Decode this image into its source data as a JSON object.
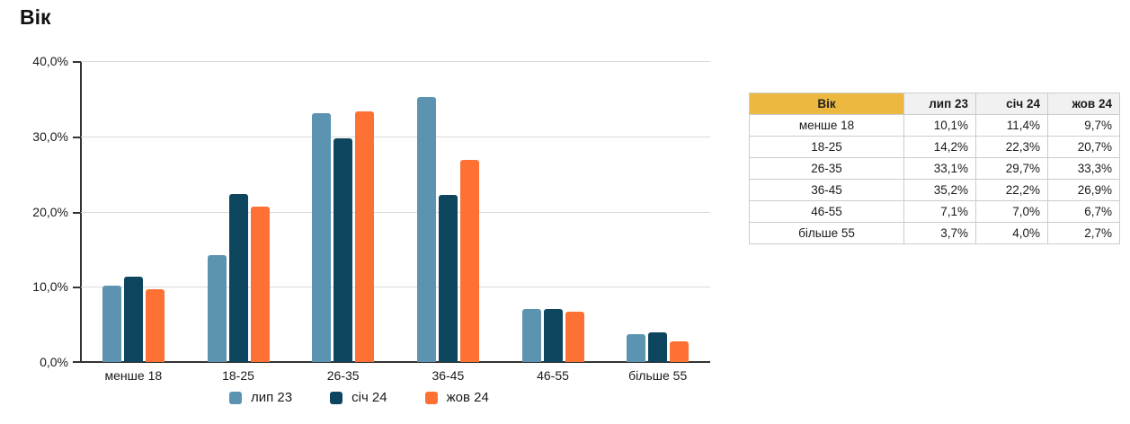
{
  "title": "Вік",
  "colors": {
    "series1": "#5B93B1",
    "series2": "#0D455F",
    "series3": "#FD7134",
    "table_header_bg": "#ECB83F",
    "table_subheader_bg": "#F1F1F1",
    "gridline": "#D9D9D9",
    "axis": "#333333"
  },
  "chart_data": {
    "type": "bar",
    "title": "Вік",
    "categories": [
      "менше 18",
      "18-25",
      "26-35",
      "36-45",
      "46-55",
      "більше 55"
    ],
    "series": [
      {
        "name": "лип 23",
        "color": "#5B93B1",
        "values": [
          10.1,
          14.2,
          33.1,
          35.2,
          7.1,
          3.7
        ]
      },
      {
        "name": "січ 24",
        "color": "#0D455F",
        "values": [
          11.4,
          22.3,
          29.7,
          22.2,
          7.0,
          4.0
        ]
      },
      {
        "name": "жов 24",
        "color": "#FD7134",
        "values": [
          9.7,
          20.7,
          33.3,
          26.9,
          6.7,
          2.7
        ]
      }
    ],
    "xlabel": "",
    "ylabel": "",
    "ylim": [
      0,
      40
    ],
    "yticks": [
      {
        "value": 40,
        "label": "40,0%"
      },
      {
        "value": 30,
        "label": "30,0%"
      },
      {
        "value": 20,
        "label": "20,0%"
      },
      {
        "value": 10,
        "label": "10,0%"
      },
      {
        "value": 0,
        "label": "0,0%"
      }
    ],
    "grid": true,
    "legend_position": "bottom"
  },
  "table": {
    "headers": [
      "Вік",
      "лип 23",
      "січ 24",
      "жов 24"
    ],
    "rows": [
      {
        "age": "менше 18",
        "values": [
          "10,1%",
          "11,4%",
          "9,7%"
        ]
      },
      {
        "age": "18-25",
        "values": [
          "14,2%",
          "22,3%",
          "20,7%"
        ]
      },
      {
        "age": "26-35",
        "values": [
          "33,1%",
          "29,7%",
          "33,3%"
        ]
      },
      {
        "age": "36-45",
        "values": [
          "35,2%",
          "22,2%",
          "26,9%"
        ]
      },
      {
        "age": "46-55",
        "values": [
          "7,1%",
          "7,0%",
          "6,7%"
        ]
      },
      {
        "age": "більше 55",
        "values": [
          "3,7%",
          "4,0%",
          "2,7%"
        ]
      }
    ]
  }
}
